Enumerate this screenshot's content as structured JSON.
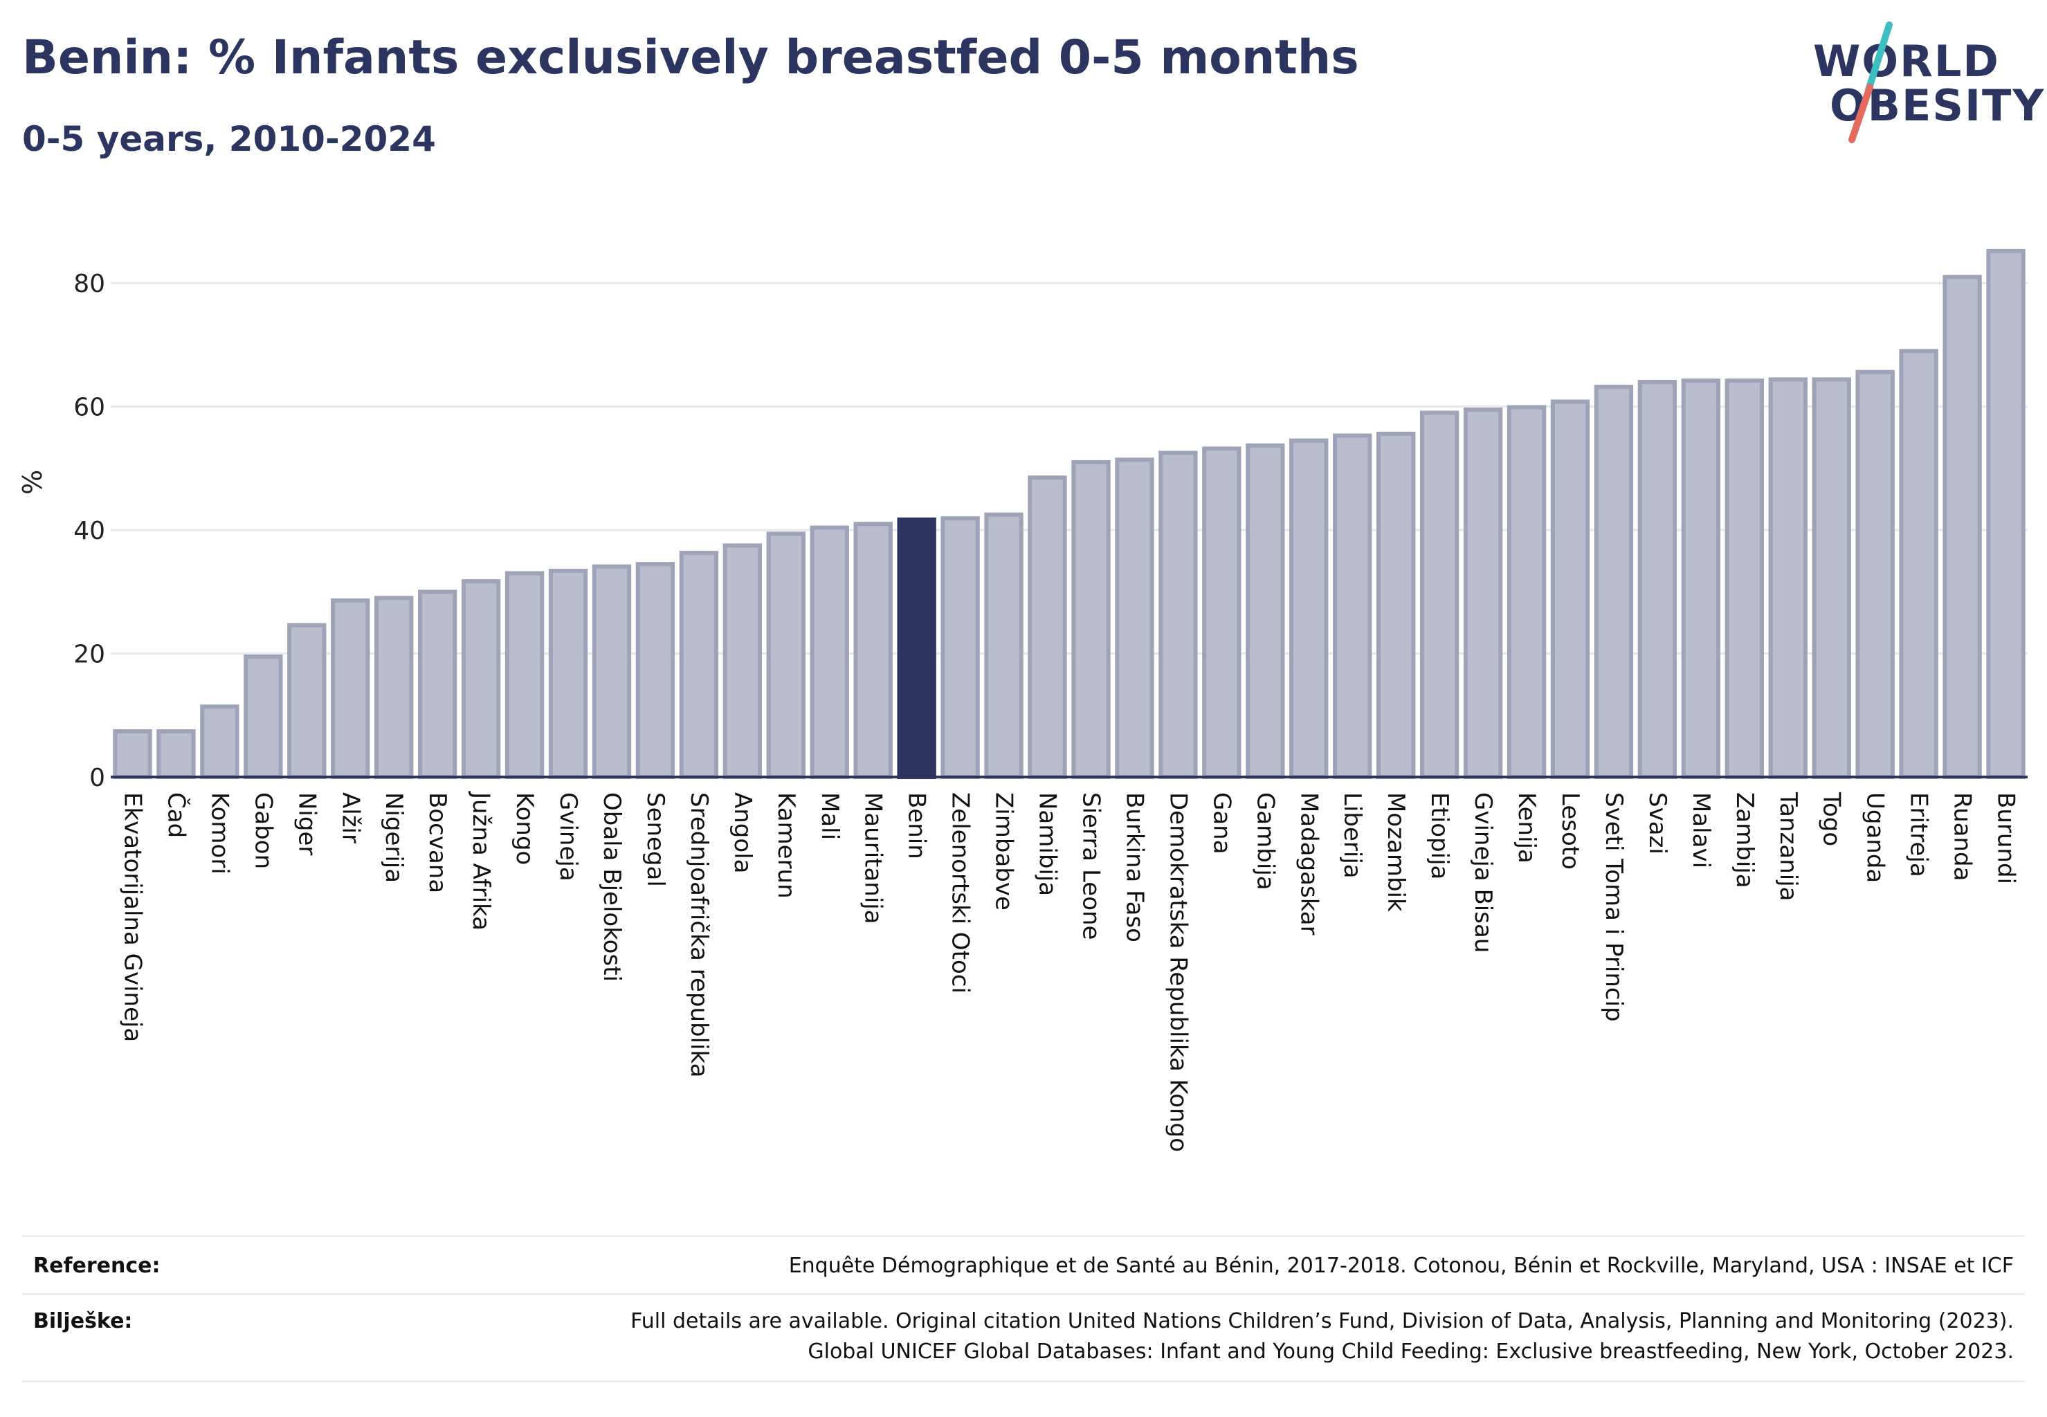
{
  "header": {
    "title": "Benin: % Infants exclusively breastfed 0-5 months",
    "subtitle": "0-5 years, 2010-2024"
  },
  "logo": {
    "line1": "WORLD",
    "line2": "OBESITY",
    "slash_colors": [
      "#3dbec0",
      "#e36a5d"
    ]
  },
  "chart_data": {
    "type": "bar",
    "ylabel": "%",
    "xlabel": "",
    "ylim": [
      0,
      90
    ],
    "yticks": [
      0,
      20,
      40,
      60,
      80
    ],
    "grid": true,
    "highlight": "Benin",
    "colors": {
      "bar": "#b9bdcc",
      "bar_border": "#9ea3b8",
      "highlight": "#2b3560"
    },
    "categories": [
      "Ekvatorijalna Gvineja",
      "Čad",
      "Komori",
      "Gabon",
      "Niger",
      "Alžir",
      "Nigerija",
      "Bocvana",
      "Južna Afrika",
      "Kongo",
      "Gvineja",
      "Obala Bjelokosti",
      "Senegal",
      "Srednjoafrička republika",
      "Angola",
      "Kamerun",
      "Mali",
      "Mauritanija",
      "Benin",
      "Zelenortski Otoci",
      "Zimbabve",
      "Namibija",
      "Sierra Leone",
      "Burkina Faso",
      "Demokratska Republika Kongo",
      "Gana",
      "Gambija",
      "Madagaskar",
      "Liberija",
      "Mozambik",
      "Etiopija",
      "Gvineja Bisau",
      "Kenija",
      "Lesoto",
      "Sveti Toma i Princip",
      "Svazi",
      "Malavi",
      "Zambija",
      "Tanzanija",
      "Togo",
      "Uganda",
      "Eritreja",
      "Ruanda",
      "Burundi"
    ],
    "values": [
      7.4,
      7.4,
      11.4,
      19.5,
      24.6,
      28.6,
      29.0,
      30.0,
      31.7,
      33.0,
      33.4,
      34.1,
      34.5,
      36.3,
      37.5,
      39.4,
      40.4,
      41.0,
      41.7,
      41.9,
      42.5,
      48.5,
      51.0,
      51.4,
      52.5,
      53.2,
      53.7,
      54.5,
      55.3,
      55.6,
      59.0,
      59.5,
      59.9,
      60.8,
      63.2,
      64.0,
      64.2,
      64.2,
      64.4,
      64.4,
      65.6,
      69.0,
      81.0,
      85.2
    ]
  },
  "footer": {
    "reference_label": "Reference:",
    "reference_text": "Enquête Démographique et de Santé au Bénin, 2017-2018. Cotonou, Bénin et Rockville, Maryland, USA : INSAE et ICF",
    "notes_label": "Bilješke:",
    "notes_line1": "Full details are available. Original citation United Nations Children’s Fund, Division of Data, Analysis, Planning and Monitoring (2023).",
    "notes_line2": "Global UNICEF Global Databases: Infant and Young Child Feeding: Exclusive breastfeeding, New York, October 2023."
  }
}
